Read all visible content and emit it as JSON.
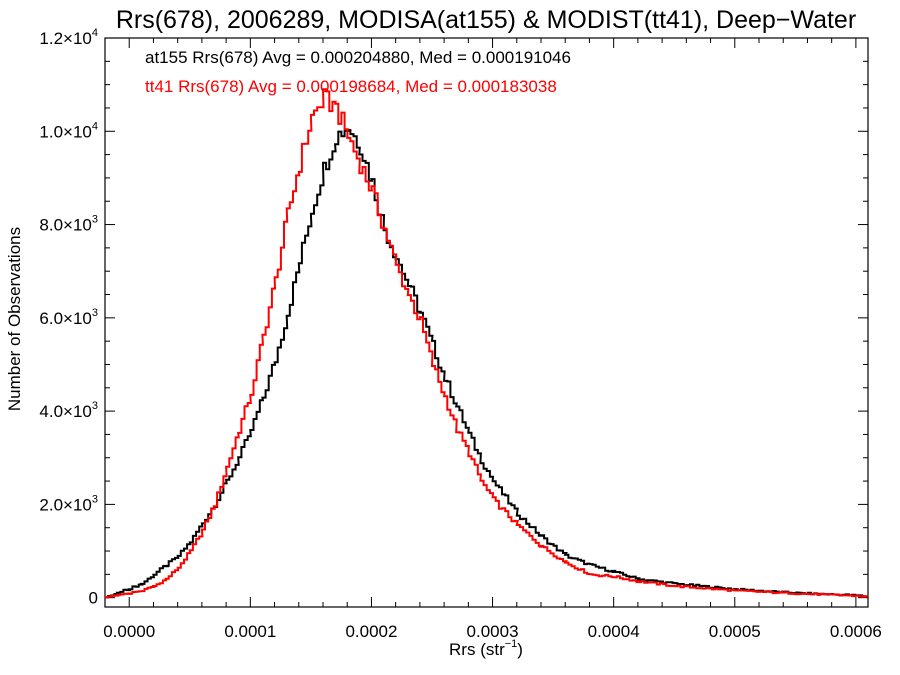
{
  "chart_data": {
    "type": "line",
    "title": "Rrs(678), 2006289, MODISA(at155) & MODIST(tt41), Deep−Water",
    "xlabel": "Rrs (str",
    "xlabel_sup": "−1",
    "xlabel_close": ")",
    "ylabel": "Number of Observations",
    "xlim": [
      -2e-05,
      0.00061
    ],
    "ylim": [
      -200,
      12000
    ],
    "x_ticks": [
      {
        "value": 0.0,
        "label": "0.0000"
      },
      {
        "value": 0.0001,
        "label": "0.0001"
      },
      {
        "value": 0.0002,
        "label": "0.0002"
      },
      {
        "value": 0.0003,
        "label": "0.0003"
      },
      {
        "value": 0.0004,
        "label": "0.0004"
      },
      {
        "value": 0.0005,
        "label": "0.0005"
      },
      {
        "value": 0.0006,
        "label": "0.0006"
      }
    ],
    "y_ticks": [
      {
        "value": 0,
        "mant": "0",
        "exp": ""
      },
      {
        "value": 2000,
        "mant": "2.0×10",
        "exp": "3"
      },
      {
        "value": 4000,
        "mant": "4.0×10",
        "exp": "3"
      },
      {
        "value": 6000,
        "mant": "6.0×10",
        "exp": "3"
      },
      {
        "value": 8000,
        "mant": "8.0×10",
        "exp": "3"
      },
      {
        "value": 10000,
        "mant": "1.0×10",
        "exp": "4"
      },
      {
        "value": 12000,
        "mant": "1.2×10",
        "exp": "4"
      }
    ],
    "series": [
      {
        "name": "at155",
        "color": "#000000",
        "x": [
          -2e-05,
          -1e-05,
          0.0,
          1e-05,
          2e-05,
          3e-05,
          4e-05,
          5e-05,
          6e-05,
          7e-05,
          8e-05,
          9e-05,
          0.0001,
          0.00011,
          0.00012,
          0.00013,
          0.00014,
          0.00015,
          0.00016,
          0.00017,
          0.00018,
          0.00019,
          0.0002,
          0.00021,
          0.00022,
          0.00023,
          0.00024,
          0.00025,
          0.00026,
          0.00027,
          0.00028,
          0.00029,
          0.0003,
          0.00032,
          0.00034,
          0.00036,
          0.00038,
          0.0004,
          0.00042,
          0.00045,
          0.0005,
          0.00055,
          0.0006,
          0.00061
        ],
        "y": [
          0,
          100,
          200,
          300,
          500,
          700,
          900,
          1200,
          1600,
          2000,
          2500,
          3000,
          3600,
          4300,
          5100,
          6100,
          7200,
          8300,
          9200,
          9900,
          10100,
          9700,
          8900,
          7900,
          7300,
          6700,
          6100,
          5400,
          4700,
          4100,
          3500,
          2950,
          2500,
          1800,
          1300,
          900,
          700,
          550,
          400,
          300,
          180,
          100,
          50,
          20
        ]
      },
      {
        "name": "tt41",
        "color": "#ff0000",
        "x": [
          -2e-05,
          -1e-05,
          0.0,
          1e-05,
          2e-05,
          3e-05,
          4e-05,
          5e-05,
          6e-05,
          7e-05,
          8e-05,
          9e-05,
          0.0001,
          0.00011,
          0.00012,
          0.00013,
          0.00014,
          0.00015,
          0.00016,
          0.00017,
          0.00018,
          0.00019,
          0.0002,
          0.00021,
          0.00022,
          0.00023,
          0.00024,
          0.00025,
          0.00026,
          0.00027,
          0.00028,
          0.00029,
          0.0003,
          0.00032,
          0.00034,
          0.00036,
          0.00038,
          0.0004,
          0.00042,
          0.00045,
          0.0005,
          0.00055,
          0.0006,
          0.00061
        ],
        "y": [
          0,
          50,
          100,
          150,
          250,
          400,
          650,
          1000,
          1450,
          2000,
          2800,
          3600,
          4400,
          5600,
          6800,
          8200,
          9300,
          10300,
          10700,
          10500,
          9900,
          9300,
          8700,
          7900,
          7100,
          6500,
          5900,
          5000,
          4300,
          3600,
          3100,
          2500,
          2100,
          1550,
          1100,
          750,
          500,
          450,
          350,
          250,
          150,
          90,
          40,
          15
        ]
      }
    ],
    "annotations": [
      {
        "text": "at155 Rrs(678) Avg = 0.000204880, Med = 0.000191046",
        "color": "#000000"
      },
      {
        "text": "tt41 Rrs(678) Avg = 0.000198684, Med = 0.000183038",
        "color": "#ff0000"
      }
    ]
  }
}
